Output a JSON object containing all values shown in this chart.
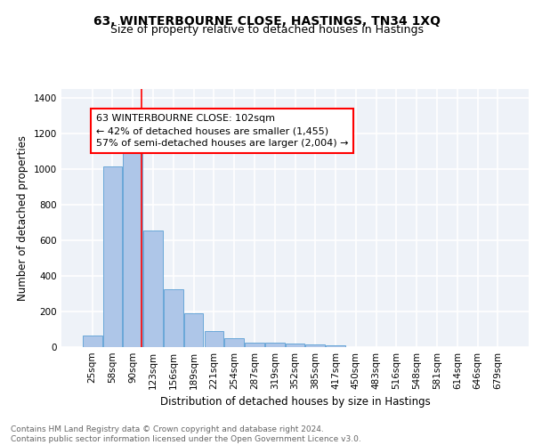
{
  "title": "63, WINTERBOURNE CLOSE, HASTINGS, TN34 1XQ",
  "subtitle": "Size of property relative to detached houses in Hastings",
  "xlabel": "Distribution of detached houses by size in Hastings",
  "ylabel": "Number of detached properties",
  "bin_labels": [
    "25sqm",
    "58sqm",
    "90sqm",
    "123sqm",
    "156sqm",
    "189sqm",
    "221sqm",
    "254sqm",
    "287sqm",
    "319sqm",
    "352sqm",
    "385sqm",
    "417sqm",
    "450sqm",
    "483sqm",
    "516sqm",
    "548sqm",
    "581sqm",
    "614sqm",
    "646sqm",
    "679sqm"
  ],
  "bar_values": [
    65,
    1015,
    1100,
    655,
    325,
    192,
    90,
    50,
    25,
    25,
    18,
    13,
    10,
    0,
    0,
    0,
    0,
    0,
    0,
    0,
    0
  ],
  "bar_color": "#aec6e8",
  "bar_edge_color": "#5a9fd4",
  "red_line_index": 2.45,
  "annotation_text": "63 WINTERBOURNE CLOSE: 102sqm\n← 42% of detached houses are smaller (1,455)\n57% of semi-detached houses are larger (2,004) →",
  "annotation_box_color": "white",
  "annotation_box_edge_color": "red",
  "ylim": [
    0,
    1450
  ],
  "yticks": [
    0,
    200,
    400,
    600,
    800,
    1000,
    1200,
    1400
  ],
  "footer_text": "Contains HM Land Registry data © Crown copyright and database right 2024.\nContains public sector information licensed under the Open Government Licence v3.0.",
  "background_color": "#eef2f8",
  "grid_color": "#ffffff",
  "title_fontsize": 10,
  "subtitle_fontsize": 9,
  "axis_label_fontsize": 8.5,
  "tick_fontsize": 7.5,
  "annotation_fontsize": 8,
  "footer_fontsize": 6.5
}
